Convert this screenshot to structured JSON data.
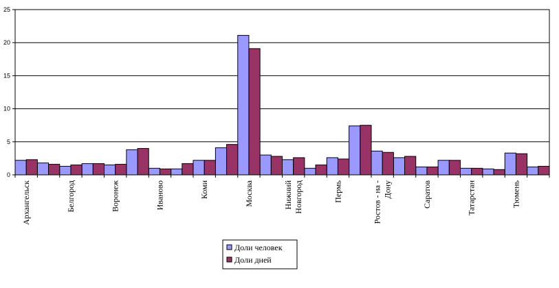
{
  "chart_data": {
    "type": "bar",
    "ylim": [
      0,
      25
    ],
    "yticks": [
      0,
      5,
      10,
      15,
      20,
      25
    ],
    "grid": true,
    "legend_position": "bottom-center",
    "categories": [
      "Архангельск",
      "",
      "Белгород",
      "",
      "Воронеж",
      "",
      "Иваново",
      "",
      "Коми",
      "",
      "Москва",
      "",
      "Нижний Новгород",
      "",
      "Пермь",
      "",
      "Ростов - на - Дону",
      "",
      "Саратов",
      "",
      "Татарстан",
      "",
      "Тюмень",
      ""
    ],
    "category_lines": [
      [
        "Архангельск"
      ],
      [],
      [
        "Белгород"
      ],
      [],
      [
        "Воронеж"
      ],
      [],
      [
        "Иваново"
      ],
      [],
      [
        "Коми"
      ],
      [],
      [
        "Москва"
      ],
      [],
      [
        "Нижний",
        "Новгород"
      ],
      [],
      [
        "Пермь"
      ],
      [],
      [
        "Ростов - на -",
        "Дону"
      ],
      [],
      [
        "Саратов"
      ],
      [],
      [
        "Татарстан"
      ],
      [],
      [
        "Тюмень"
      ],
      []
    ],
    "series": [
      {
        "name": "Доли человек",
        "color": "#9999ff",
        "values": [
          2.2,
          1.8,
          1.3,
          1.7,
          1.5,
          3.8,
          1.0,
          0.9,
          2.2,
          4.1,
          21.1,
          3.0,
          2.3,
          1.0,
          2.6,
          7.4,
          3.6,
          2.6,
          1.2,
          2.2,
          1.0,
          0.9,
          3.3,
          1.2
        ]
      },
      {
        "name": "Доли дней",
        "color": "#993366",
        "values": [
          2.3,
          1.6,
          1.5,
          1.7,
          1.6,
          4.0,
          0.9,
          1.7,
          2.2,
          4.6,
          19.1,
          2.8,
          2.6,
          1.5,
          2.4,
          7.5,
          3.4,
          2.8,
          1.2,
          2.2,
          1.0,
          0.8,
          3.2,
          1.3
        ]
      }
    ]
  }
}
